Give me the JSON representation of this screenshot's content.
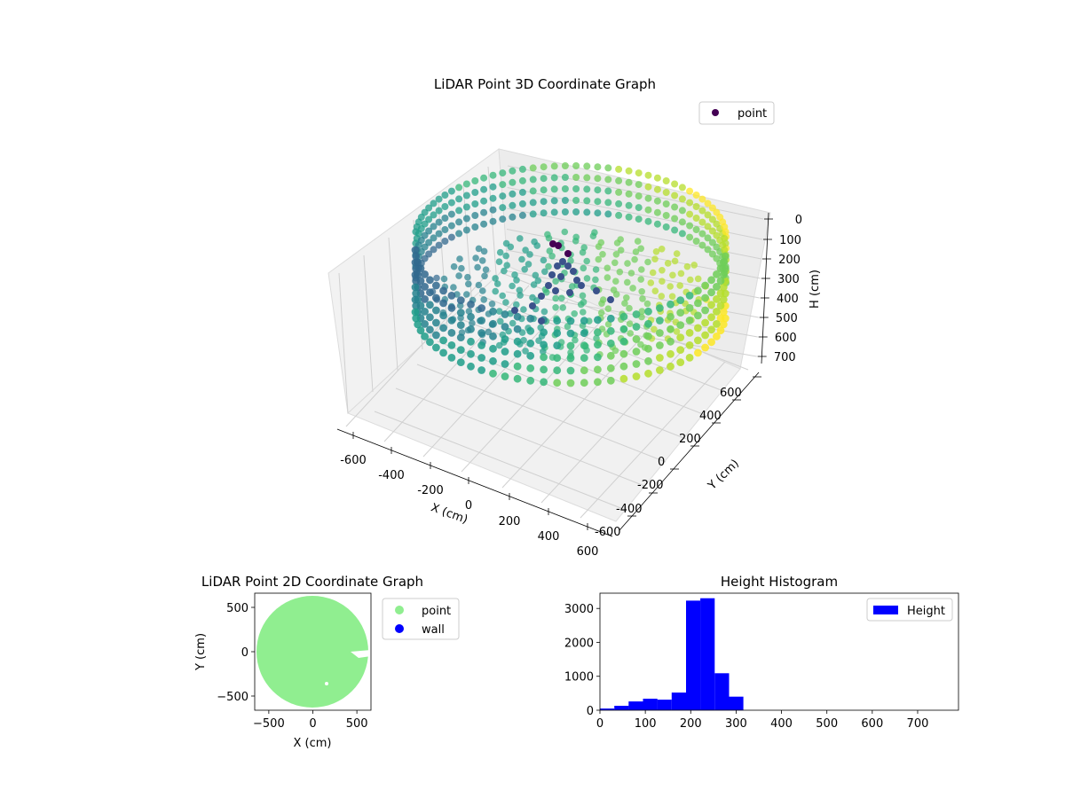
{
  "chart_data": [
    {
      "type": "scatter3d",
      "title": "LiDAR Point 3D Coordinate Graph",
      "xlabel": "X (cm)",
      "ylabel": "Y (cm)",
      "zlabel": "H (cm)",
      "xlim": [
        -700,
        700
      ],
      "ylim": [
        -700,
        700
      ],
      "zlim": [
        0,
        790
      ],
      "z_inverted": true,
      "x_ticks": [
        "-600",
        "-400",
        "-200",
        "0",
        "200",
        "400",
        "600"
      ],
      "y_ticks": [
        "-600",
        "-400",
        "-200",
        "0",
        "200",
        "400",
        "600"
      ],
      "z_ticks": [
        "0",
        "100",
        "200",
        "300",
        "400",
        "500",
        "600",
        "700"
      ],
      "legend": {
        "placement": "top-right",
        "entries": [
          "point"
        ]
      },
      "colormap": "viridis",
      "series": [
        {
          "name": "point",
          "description_points": [
            {
              "shape": "wall-ring",
              "radius": 650,
              "h_range": [
                200,
                330
              ]
            },
            {
              "shape": "inner-floor",
              "radius": 560,
              "h_range": [
                150,
                320
              ]
            },
            {
              "shape": "center-cluster",
              "center": [
                0,
                0
              ],
              "h_range": [
                20,
                150
              ]
            }
          ]
        }
      ]
    },
    {
      "type": "scatter",
      "title": "LiDAR Point 2D Coordinate Graph",
      "xlabel": "X (cm)",
      "ylabel": "Y (cm)",
      "xlim": [
        -660,
        660
      ],
      "ylim": [
        -660,
        660
      ],
      "x_ticks": [
        -500,
        0,
        500
      ],
      "y_ticks": [
        -500,
        0,
        500
      ],
      "legend": {
        "placement": "outside-right",
        "entries": [
          "point",
          "wall"
        ]
      },
      "series": [
        {
          "name": "point",
          "color": "#90ee90",
          "shape": "filled-disk",
          "radius": 650
        },
        {
          "name": "wall",
          "color": "#0000ff"
        }
      ]
    },
    {
      "type": "bar",
      "title": "Height Histogram",
      "xlim": [
        0,
        790
      ],
      "ylim": [
        0,
        3450
      ],
      "x_ticks": [
        0,
        100,
        200,
        300,
        400,
        500,
        600,
        700
      ],
      "y_ticks": [
        0,
        1000,
        2000,
        3000
      ],
      "legend": {
        "placement": "top-right",
        "entries": [
          "Height"
        ]
      },
      "bin_width": 31.6,
      "bins_start": [
        0,
        31.6,
        63.2,
        94.8,
        126.4,
        158,
        189.6,
        221.2,
        252.8,
        284.4
      ],
      "series": [
        {
          "name": "Height",
          "color": "#0000ff",
          "values": [
            50,
            130,
            260,
            340,
            310,
            520,
            3230,
            3300,
            1090,
            400
          ]
        }
      ]
    }
  ]
}
